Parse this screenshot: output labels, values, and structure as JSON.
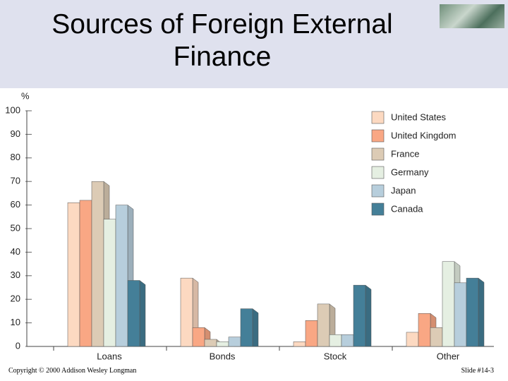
{
  "title": "Sources of Foreign External Finance",
  "chart_data": {
    "type": "bar",
    "y_label": "%",
    "categories": [
      "Loans",
      "Bonds",
      "Stock",
      "Other"
    ],
    "series": [
      {
        "name": "United States",
        "color": "#fcd9c1",
        "values": [
          61,
          29,
          2,
          6
        ]
      },
      {
        "name": "United Kingdom",
        "color": "#f9a784",
        "values": [
          62,
          8,
          11,
          14
        ]
      },
      {
        "name": "France",
        "color": "#dccbb5",
        "values": [
          70,
          3,
          18,
          8
        ]
      },
      {
        "name": "Germany",
        "color": "#e5efe2",
        "values": [
          54,
          2,
          5,
          36
        ]
      },
      {
        "name": "Japan",
        "color": "#b7cedc",
        "values": [
          60,
          4,
          5,
          27
        ]
      },
      {
        "name": "Canada",
        "color": "#447f98",
        "values": [
          28,
          16,
          26,
          29
        ]
      }
    ],
    "ylim": [
      0,
      100
    ],
    "yticks": [
      0,
      10,
      20,
      30,
      40,
      50,
      60,
      70,
      80,
      90,
      100
    ],
    "legend": "upper right"
  },
  "footer": {
    "left": "Copyright © 2000 Addison Wesley Longman",
    "right": "Slide #14-3"
  }
}
